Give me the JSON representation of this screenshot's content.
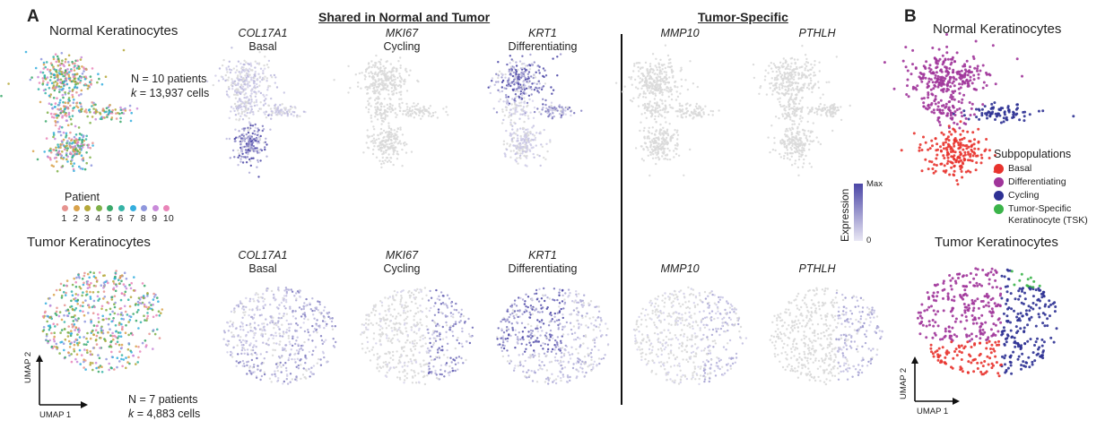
{
  "panel_a": {
    "letter": "A",
    "normal_title": "Normal Keratinocytes",
    "tumor_title": "Tumor Keratinocytes",
    "normal_stats": {
      "n_line": "N = 10 patients",
      "k_prefix": "k",
      "k_rest": " = 13,937 cells"
    },
    "tumor_stats": {
      "n_line": "N = 7 patients",
      "k_prefix": "k",
      "k_rest": " = 4,883 cells"
    },
    "patient_legend": {
      "title": "Patient",
      "labels": [
        "1",
        "2",
        "3",
        "4",
        "5",
        "6",
        "7",
        "8",
        "9",
        "10"
      ],
      "colors": [
        "#e6938f",
        "#d9a24b",
        "#b5a83a",
        "#7fb048",
        "#3aa86a",
        "#36b3a6",
        "#35aede",
        "#8f97dd",
        "#c98ad9",
        "#e984b8"
      ]
    },
    "shared_header": "Shared in Normal and Tumor",
    "specific_header": "Tumor-Specific",
    "genes": [
      {
        "gene": "COL17A1",
        "type": "Basal"
      },
      {
        "gene": "MKI67",
        "type": "Cycling"
      },
      {
        "gene": "KRT1",
        "type": "Differentiating"
      },
      {
        "gene": "MMP10",
        "type": ""
      },
      {
        "gene": "PTHLH",
        "type": ""
      }
    ],
    "colorbar": {
      "label": "Expression",
      "max": "Max",
      "min": "0",
      "low_color": "#e9e7f4",
      "high_color": "#4b46a6"
    },
    "axis": {
      "x": "UMAP 1",
      "y": "UMAP 2"
    },
    "grey_color": "#d9d9d9"
  },
  "panel_b": {
    "letter": "B",
    "normal_title": "Normal Keratinocytes",
    "tumor_title": "Tumor Keratinocytes",
    "legend_title": "Subpopulations",
    "subpopulations": [
      {
        "label": "Basal",
        "color": "#e8332d"
      },
      {
        "label": "Differentiating",
        "color": "#a0359a"
      },
      {
        "label": "Cycling",
        "color": "#2e3194"
      },
      {
        "label": "Tumor-Specific",
        "label2": "Keratinocyte (TSK)",
        "color": "#3bb44a"
      }
    ],
    "axis": {
      "x": "UMAP 1",
      "y": "UMAP 2"
    }
  }
}
